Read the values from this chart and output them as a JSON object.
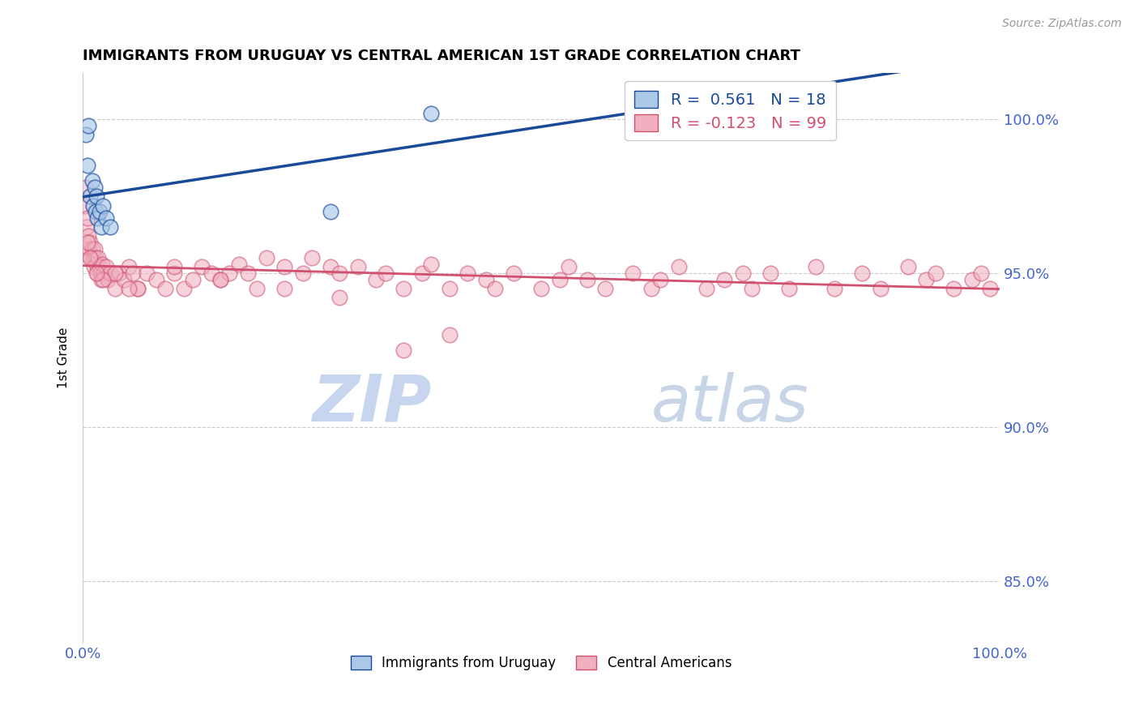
{
  "title": "IMMIGRANTS FROM URUGUAY VS CENTRAL AMERICAN 1ST GRADE CORRELATION CHART",
  "source": "Source: ZipAtlas.com",
  "ylabel": "1st Grade",
  "xlim": [
    0.0,
    100.0
  ],
  "ylim": [
    83.0,
    101.5
  ],
  "yticks": [
    85.0,
    90.0,
    95.0,
    100.0
  ],
  "ytick_labels": [
    "85.0%",
    "90.0%",
    "95.0%",
    "100.0%"
  ],
  "blue_R": 0.561,
  "blue_N": 18,
  "pink_R": -0.123,
  "pink_N": 99,
  "blue_color": "#aac8e8",
  "pink_color": "#f0b0c0",
  "blue_line_color": "#1a4a9a",
  "pink_line_color": "#d05070",
  "grid_color": "#cccccc",
  "axis_label_color": "#4466cc",
  "watermark_zip_color": "#d0ddf0",
  "watermark_atlas_color": "#b8c8e8",
  "blue_x": [
    0.3,
    0.5,
    0.6,
    0.8,
    1.0,
    1.1,
    1.3,
    1.4,
    1.5,
    1.6,
    1.8,
    2.0,
    2.2,
    2.5,
    3.0,
    27.0,
    38.0,
    60.0
  ],
  "blue_y": [
    99.5,
    98.5,
    99.8,
    97.5,
    98.0,
    97.2,
    97.8,
    97.0,
    97.5,
    96.8,
    97.0,
    96.5,
    97.2,
    96.8,
    96.5,
    97.0,
    100.2,
    100.5
  ],
  "pink_x": [
    0.2,
    0.3,
    0.4,
    0.5,
    0.6,
    0.7,
    0.8,
    0.9,
    1.0,
    1.1,
    1.2,
    1.3,
    1.4,
    1.5,
    1.6,
    1.7,
    1.8,
    1.9,
    2.0,
    2.1,
    2.3,
    2.5,
    2.7,
    3.0,
    3.5,
    4.0,
    4.5,
    5.0,
    5.5,
    6.0,
    7.0,
    8.0,
    9.0,
    10.0,
    11.0,
    12.0,
    13.0,
    14.0,
    15.0,
    16.0,
    17.0,
    18.0,
    19.0,
    20.0,
    22.0,
    24.0,
    25.0,
    27.0,
    28.0,
    30.0,
    32.0,
    33.0,
    35.0,
    37.0,
    38.0,
    40.0,
    42.0,
    44.0,
    45.0,
    47.0,
    50.0,
    52.0,
    53.0,
    55.0,
    57.0,
    60.0,
    62.0,
    63.0,
    65.0,
    68.0,
    70.0,
    72.0,
    73.0,
    75.0,
    77.0,
    80.0,
    82.0,
    85.0,
    87.0,
    90.0,
    92.0,
    93.0,
    95.0,
    97.0,
    98.0,
    99.0,
    35.0,
    40.0,
    28.0,
    22.0,
    15.0,
    10.0,
    6.0,
    3.5,
    2.2,
    1.5,
    0.8,
    0.5,
    5.0
  ],
  "pink_y": [
    97.2,
    97.8,
    96.5,
    96.8,
    96.2,
    95.8,
    96.0,
    95.5,
    95.8,
    95.5,
    95.2,
    95.8,
    95.5,
    95.3,
    95.0,
    95.5,
    95.2,
    95.0,
    94.8,
    95.3,
    95.0,
    95.2,
    94.8,
    95.0,
    94.5,
    95.0,
    94.8,
    95.2,
    95.0,
    94.5,
    95.0,
    94.8,
    94.5,
    95.0,
    94.5,
    94.8,
    95.2,
    95.0,
    94.8,
    95.0,
    95.3,
    95.0,
    94.5,
    95.5,
    95.2,
    95.0,
    95.5,
    95.2,
    95.0,
    95.2,
    94.8,
    95.0,
    94.5,
    95.0,
    95.3,
    94.5,
    95.0,
    94.8,
    94.5,
    95.0,
    94.5,
    94.8,
    95.2,
    94.8,
    94.5,
    95.0,
    94.5,
    94.8,
    95.2,
    94.5,
    94.8,
    95.0,
    94.5,
    95.0,
    94.5,
    95.2,
    94.5,
    95.0,
    94.5,
    95.2,
    94.8,
    95.0,
    94.5,
    94.8,
    95.0,
    94.5,
    92.5,
    93.0,
    94.2,
    94.5,
    94.8,
    95.2,
    94.5,
    95.0,
    94.8,
    95.0,
    95.5,
    96.0,
    94.5
  ]
}
